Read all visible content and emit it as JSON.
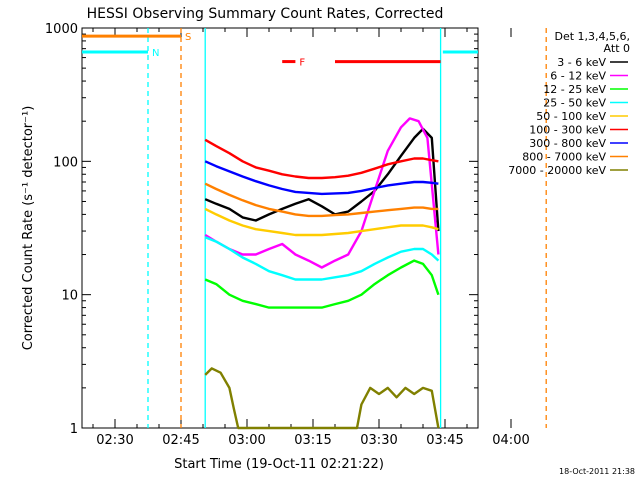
{
  "chart_data": {
    "type": "line",
    "title": "HESSI Observing Summary Count Rates, Corrected",
    "xlabel": "Start Time (19-Oct-11 02:21:22)",
    "ylabel": "Corrected Count Rate (s⁻¹ detector⁻¹)",
    "yscale": "log",
    "ylim": [
      1,
      1000
    ],
    "xlim_minutes": [
      0,
      240
    ],
    "x_ticks": [
      {
        "label": "02:30",
        "min": 30
      },
      {
        "label": "02:45",
        "min": 45
      },
      {
        "label": "03:00",
        "min": 60
      },
      {
        "label": "03:15",
        "min": 75
      },
      {
        "label": "03:30",
        "min": 90
      },
      {
        "label": "03:45",
        "min": 105
      },
      {
        "label": "04:00",
        "min": 120
      }
    ],
    "y_ticks": [
      {
        "label": "1",
        "v": 1
      },
      {
        "label": "10",
        "v": 10
      },
      {
        "label": "100",
        "v": 100
      },
      {
        "label": "1000",
        "v": 1000
      }
    ],
    "legend_header": [
      "Det 1,3,4,5,6,",
      "Att 0"
    ],
    "series": [
      {
        "name": "3 - 6 keV",
        "color": "#000000",
        "points": [
          [
            50.5,
            52
          ],
          [
            53,
            48
          ],
          [
            56,
            44
          ],
          [
            59,
            38
          ],
          [
            62,
            36
          ],
          [
            65,
            40
          ],
          [
            68,
            44
          ],
          [
            71,
            48
          ],
          [
            74,
            52
          ],
          [
            77,
            46
          ],
          [
            80,
            40
          ],
          [
            83,
            42
          ],
          [
            86,
            50
          ],
          [
            89,
            60
          ],
          [
            92,
            80
          ],
          [
            95,
            110
          ],
          [
            98,
            150
          ],
          [
            100,
            175
          ],
          [
            102,
            150
          ],
          [
            103.5,
            30
          ]
        ]
      },
      {
        "name": "6 - 12 keV",
        "color": "#ff00ff",
        "points": [
          [
            50.5,
            28
          ],
          [
            53,
            25
          ],
          [
            56,
            22
          ],
          [
            59,
            20
          ],
          [
            62,
            20
          ],
          [
            65,
            22
          ],
          [
            68,
            24
          ],
          [
            71,
            20
          ],
          [
            74,
            18
          ],
          [
            77,
            16
          ],
          [
            80,
            18
          ],
          [
            83,
            20
          ],
          [
            86,
            30
          ],
          [
            89,
            60
          ],
          [
            92,
            120
          ],
          [
            95,
            180
          ],
          [
            97,
            210
          ],
          [
            99,
            200
          ],
          [
            101,
            150
          ],
          [
            103.5,
            20
          ]
        ]
      },
      {
        "name": "12 - 25 keV",
        "color": "#00ff00",
        "points": [
          [
            50.5,
            13
          ],
          [
            53,
            12
          ],
          [
            56,
            10
          ],
          [
            59,
            9
          ],
          [
            62,
            8.5
          ],
          [
            65,
            8
          ],
          [
            68,
            8
          ],
          [
            71,
            8
          ],
          [
            74,
            8
          ],
          [
            77,
            8
          ],
          [
            80,
            8.5
          ],
          [
            83,
            9
          ],
          [
            86,
            10
          ],
          [
            89,
            12
          ],
          [
            92,
            14
          ],
          [
            95,
            16
          ],
          [
            98,
            18
          ],
          [
            100,
            17
          ],
          [
            102,
            14
          ],
          [
            103.5,
            10
          ]
        ]
      },
      {
        "name": "25 - 50 keV",
        "color": "#00ffff",
        "points": [
          [
            50.5,
            27
          ],
          [
            53,
            25
          ],
          [
            56,
            22
          ],
          [
            59,
            19
          ],
          [
            62,
            17
          ],
          [
            65,
            15
          ],
          [
            68,
            14
          ],
          [
            71,
            13
          ],
          [
            74,
            13
          ],
          [
            77,
            13
          ],
          [
            80,
            13.5
          ],
          [
            83,
            14
          ],
          [
            86,
            15
          ],
          [
            89,
            17
          ],
          [
            92,
            19
          ],
          [
            95,
            21
          ],
          [
            98,
            22
          ],
          [
            100,
            22
          ],
          [
            102,
            20
          ],
          [
            103.5,
            18
          ]
        ]
      },
      {
        "name": "50 - 100 keV",
        "color": "#ffcc00",
        "points": [
          [
            50.5,
            44
          ],
          [
            53,
            40
          ],
          [
            56,
            36
          ],
          [
            59,
            33
          ],
          [
            62,
            31
          ],
          [
            65,
            30
          ],
          [
            68,
            29
          ],
          [
            71,
            28
          ],
          [
            74,
            28
          ],
          [
            77,
            28
          ],
          [
            80,
            28.5
          ],
          [
            83,
            29
          ],
          [
            86,
            30
          ],
          [
            89,
            31
          ],
          [
            92,
            32
          ],
          [
            95,
            33
          ],
          [
            98,
            33
          ],
          [
            100,
            33
          ],
          [
            102,
            32
          ],
          [
            103.5,
            31
          ]
        ]
      },
      {
        "name": "100 - 300 keV",
        "color": "#ff0000",
        "points": [
          [
            50.5,
            145
          ],
          [
            53,
            130
          ],
          [
            56,
            115
          ],
          [
            59,
            100
          ],
          [
            62,
            90
          ],
          [
            65,
            85
          ],
          [
            68,
            80
          ],
          [
            71,
            77
          ],
          [
            74,
            75
          ],
          [
            77,
            75
          ],
          [
            80,
            76
          ],
          [
            83,
            78
          ],
          [
            86,
            82
          ],
          [
            89,
            88
          ],
          [
            92,
            95
          ],
          [
            95,
            100
          ],
          [
            98,
            105
          ],
          [
            100,
            105
          ],
          [
            102,
            102
          ],
          [
            103.5,
            100
          ]
        ]
      },
      {
        "name": "300 - 800 keV",
        "color": "#0000ff",
        "points": [
          [
            50.5,
            100
          ],
          [
            53,
            92
          ],
          [
            56,
            84
          ],
          [
            59,
            77
          ],
          [
            62,
            71
          ],
          [
            65,
            66
          ],
          [
            68,
            62
          ],
          [
            71,
            59
          ],
          [
            74,
            58
          ],
          [
            77,
            57
          ],
          [
            80,
            57.5
          ],
          [
            83,
            58
          ],
          [
            86,
            60
          ],
          [
            89,
            63
          ],
          [
            92,
            66
          ],
          [
            95,
            68
          ],
          [
            98,
            70
          ],
          [
            100,
            70
          ],
          [
            102,
            69
          ],
          [
            103.5,
            68
          ]
        ]
      },
      {
        "name": "800 - 7000 keV",
        "color": "#ff8000",
        "points": [
          [
            50.5,
            68
          ],
          [
            53,
            62
          ],
          [
            56,
            56
          ],
          [
            59,
            51
          ],
          [
            62,
            47
          ],
          [
            65,
            44
          ],
          [
            68,
            42
          ],
          [
            71,
            40
          ],
          [
            74,
            39
          ],
          [
            77,
            39
          ],
          [
            80,
            39.5
          ],
          [
            83,
            40
          ],
          [
            86,
            41
          ],
          [
            89,
            42
          ],
          [
            92,
            43
          ],
          [
            95,
            44
          ],
          [
            98,
            45
          ],
          [
            100,
            45
          ],
          [
            102,
            44
          ],
          [
            103.5,
            44
          ]
        ]
      },
      {
        "name": "7000 - 20000 keV",
        "color": "#808000",
        "points": [
          [
            50.5,
            2.5
          ],
          [
            52,
            2.8
          ],
          [
            54,
            2.6
          ],
          [
            56,
            2
          ],
          [
            57,
            1.4
          ],
          [
            58,
            1
          ],
          [
            59,
            1
          ],
          [
            62,
            1
          ],
          [
            65,
            1
          ],
          [
            68,
            1
          ],
          [
            71,
            1
          ],
          [
            74,
            1
          ],
          [
            77,
            1
          ],
          [
            80,
            1
          ],
          [
            83,
            1
          ],
          [
            85,
            1
          ],
          [
            86,
            1.5
          ],
          [
            88,
            2
          ],
          [
            90,
            1.8
          ],
          [
            92,
            2
          ],
          [
            94,
            1.7
          ],
          [
            96,
            2
          ],
          [
            98,
            1.8
          ],
          [
            100,
            2
          ],
          [
            102,
            1.9
          ],
          [
            103.5,
            1
          ]
        ]
      }
    ],
    "flag_bars": [
      {
        "label": "S",
        "color": "#ff8000",
        "x0": 0,
        "x1": 45,
        "v": 870
      },
      {
        "label": "N",
        "color": "#00ffff",
        "x0": 0,
        "x1": 37.5,
        "v": 660
      },
      {
        "label": "",
        "color": "#00ffff",
        "x0": 104.5,
        "x1": 128,
        "v": 660
      },
      {
        "label": "F",
        "color": "#ff0000",
        "x0": 68,
        "x1": 71,
        "v": 560
      },
      {
        "label": "",
        "color": "#ff0000",
        "x0": 80,
        "x1": 104,
        "v": 560
      }
    ],
    "vlines": [
      {
        "label": "N",
        "color": "#00ffff",
        "x": 37.5,
        "dashed": true
      },
      {
        "label": "S",
        "color": "#ff8000",
        "x": 45,
        "dashed": true
      },
      {
        "label": "",
        "color": "#00ffff",
        "x": 50.5,
        "dashed": false
      },
      {
        "label": "",
        "color": "#00ffff",
        "x": 104,
        "dashed": false
      },
      {
        "label": "",
        "color": "#ff8000",
        "x": 128,
        "dashed": true
      }
    ],
    "timestamp": "18-Oct-2011 21:38"
  }
}
